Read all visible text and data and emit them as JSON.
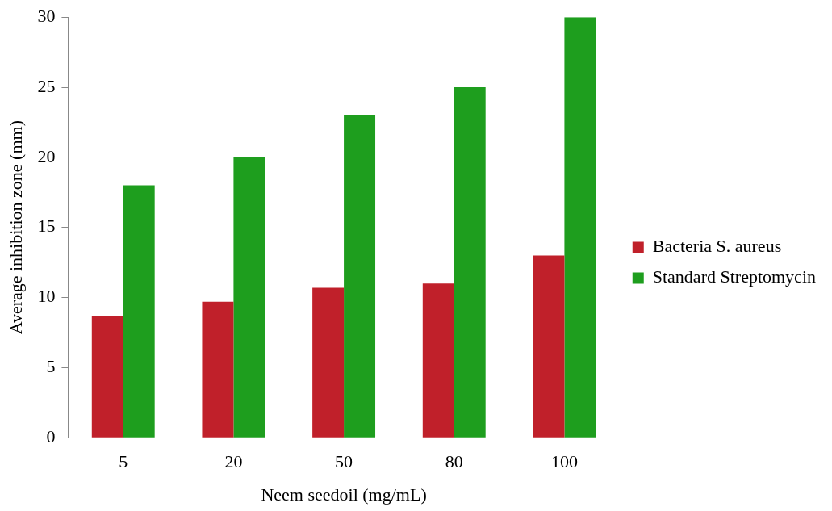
{
  "chart_data": {
    "type": "bar",
    "xlabel": "Neem seedoil (mg/mL)",
    "ylabel": "Average inhibition zone (mm)",
    "categories": [
      "5",
      "20",
      "50",
      "80",
      "100"
    ],
    "series": [
      {
        "name": "Bacteria S. aureus",
        "color": "#c0202a",
        "values": [
          8.7,
          9.7,
          10.7,
          11,
          13
        ]
      },
      {
        "name": "Standard Streptomycin",
        "color": "#1e9e1e",
        "values": [
          18,
          20,
          23,
          25,
          30
        ]
      }
    ],
    "ylim": [
      0,
      30
    ],
    "yticks": [
      0,
      5,
      10,
      15,
      20,
      25,
      30
    ],
    "legend": "right"
  }
}
